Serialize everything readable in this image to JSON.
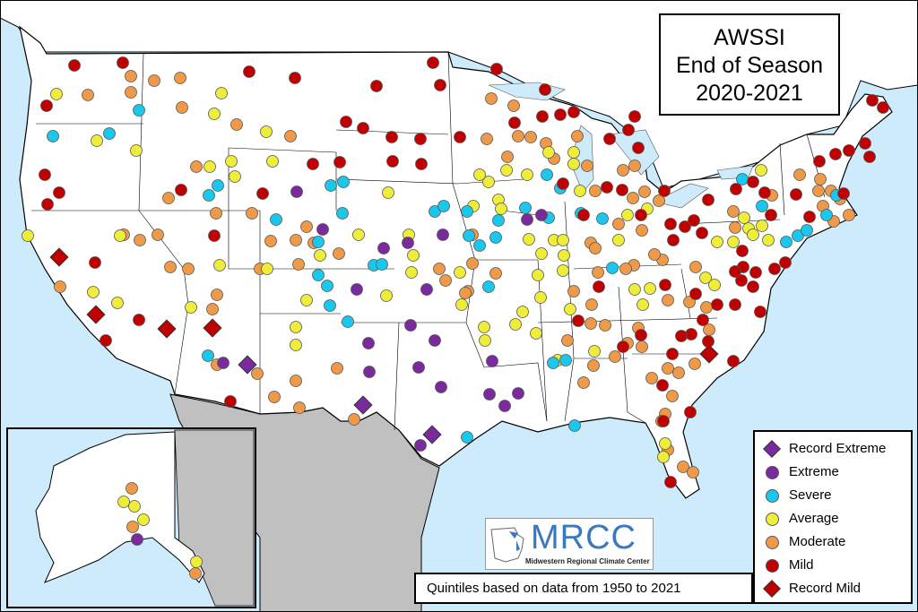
{
  "title": {
    "line1": "AWSSI",
    "line2": "End of Season",
    "line3": "2020-2021"
  },
  "legend": [
    {
      "label": "Record Extreme",
      "shape": "diamond",
      "color": "#7B2A9E"
    },
    {
      "label": "Extreme",
      "shape": "circle",
      "color": "#7B2A9E"
    },
    {
      "label": "Severe",
      "shape": "circle",
      "color": "#19C8EC"
    },
    {
      "label": "Average",
      "shape": "circle",
      "color": "#EEEE3A"
    },
    {
      "label": "Moderate",
      "shape": "circle",
      "color": "#EE9A48"
    },
    {
      "label": "Mild",
      "shape": "circle",
      "color": "#C00000"
    },
    {
      "label": "Record Mild",
      "shape": "diamond",
      "color": "#C00000"
    }
  ],
  "footnote": "Quintiles based on data from 1950 to 2021",
  "logo": {
    "name": "MRCC",
    "subtitle": "Midwestern Regional Climate Center"
  },
  "colors": {
    "water": "#CDEBFB",
    "land": "#FFFFFF",
    "foreign": "#C0C0C0"
  }
}
